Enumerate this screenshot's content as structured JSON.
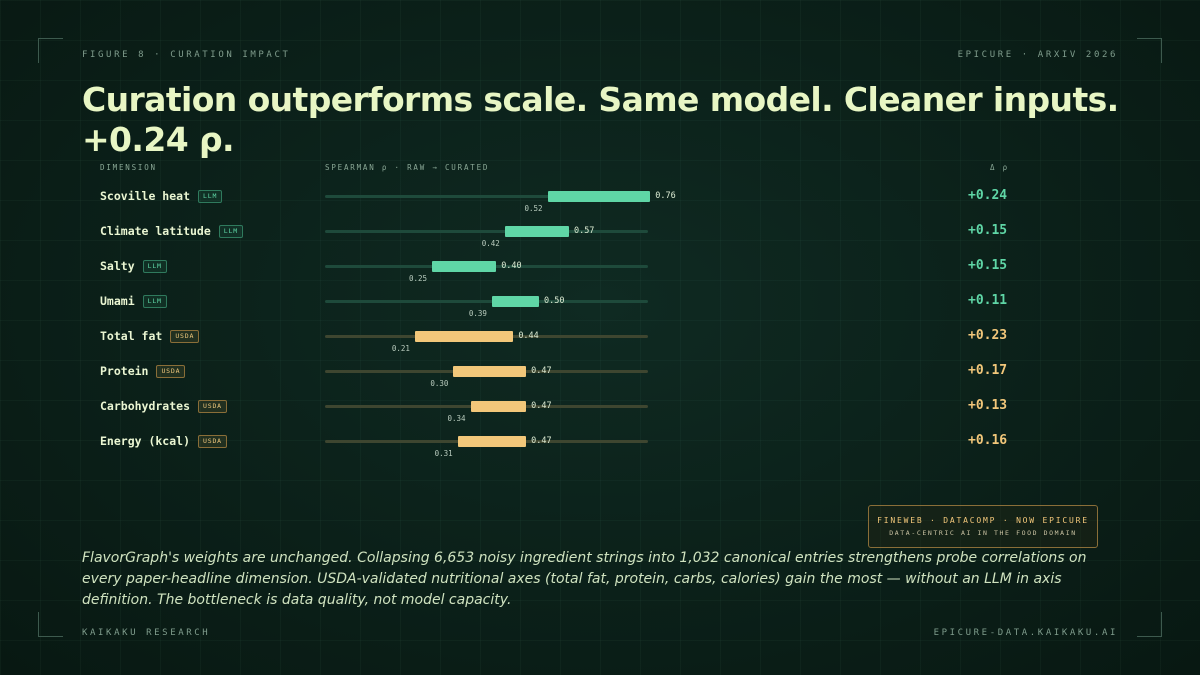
{
  "header": {
    "figure_label": "FIGURE 8 · CURATION IMPACT",
    "source_label": "EPICURE · ARXIV 2026",
    "title": "Curation outperforms scale. Same model. Cleaner inputs. +0.24 ρ."
  },
  "columns": {
    "dimension": "DIMENSION",
    "spearman": "SPEARMAN ρ · RAW → CURATED",
    "delta": "Δ ρ"
  },
  "colors": {
    "llm": "#5fd6a6",
    "usda": "#f2c77a"
  },
  "chart_data": {
    "type": "bar",
    "title": "",
    "xlabel": "SPEARMAN ρ · RAW → CURATED",
    "ylabel": "",
    "xlim": [
      0,
      1
    ],
    "grid": false,
    "categories": [
      "Scoville heat",
      "Climate latitude",
      "Salty",
      "Umami",
      "Total fat",
      "Protein",
      "Carbohydrates",
      "Energy (kcal)"
    ],
    "source": [
      "LLM",
      "LLM",
      "LLM",
      "LLM",
      "USDA",
      "USDA",
      "USDA",
      "USDA"
    ],
    "series": [
      {
        "name": "raw",
        "values": [
          0.52,
          0.42,
          0.25,
          0.39,
          0.21,
          0.3,
          0.34,
          0.31
        ]
      },
      {
        "name": "curated",
        "values": [
          0.76,
          0.57,
          0.4,
          0.5,
          0.44,
          0.47,
          0.47,
          0.47
        ]
      }
    ],
    "raw_labels": [
      "0.52",
      "0.42",
      "0.25",
      "0.39",
      "0.21",
      "0.30",
      "0.34",
      "0.31"
    ],
    "curated_labels": [
      "0.76",
      "0.57",
      "0.40",
      "0.50",
      "0.44",
      "0.47",
      "0.47",
      "0.47"
    ],
    "delta_labels": [
      "+0.24",
      "+0.15",
      "+0.15",
      "+0.11",
      "+0.23",
      "+0.17",
      "+0.13",
      "+0.16"
    ]
  },
  "stamp": {
    "line1": "FINEWEB · DATACOMP · NOW EPICURE",
    "line2": "DATA-CENTRIC AI IN THE FOOD DOMAIN"
  },
  "caption": "FlavorGraph's weights are unchanged. Collapsing 6,653 noisy ingredient strings into 1,032 canonical entries strengthens probe correlations on every paper-headline dimension. USDA-validated nutritional axes (total fat, protein, carbs, calories) gain the most — without an LLM in axis definition. The bottleneck is data quality, not model capacity.",
  "footer": {
    "left": "KAIKAKU RESEARCH",
    "right": "EPICURE-DATA.KAIKAKU.AI"
  }
}
